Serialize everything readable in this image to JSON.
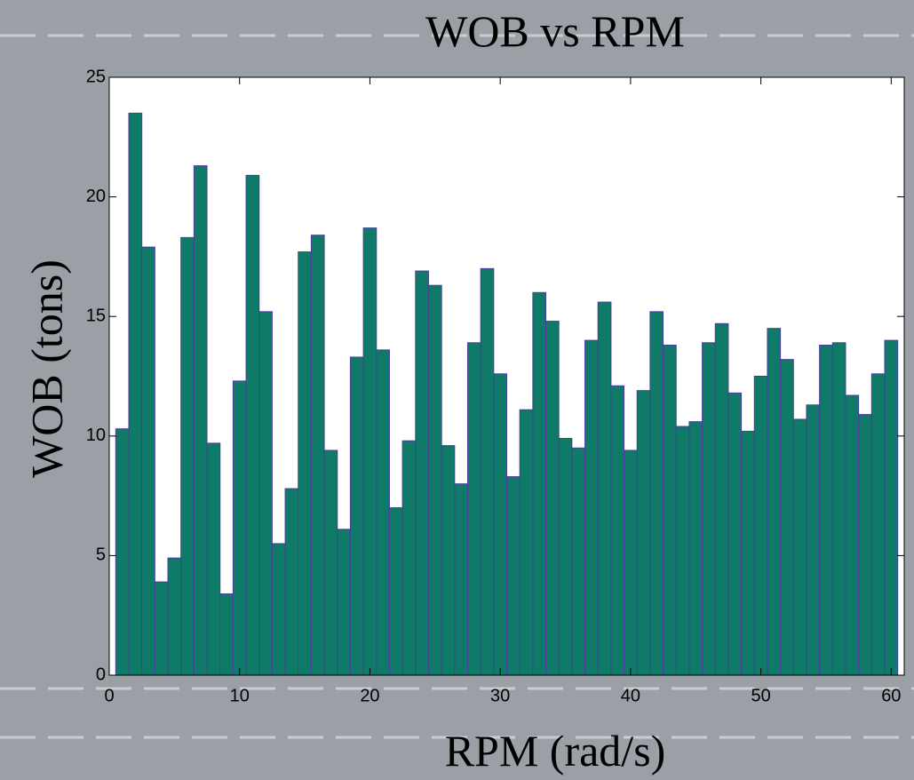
{
  "chart_data": {
    "type": "bar",
    "title": "WOB vs RPM",
    "x_label": "RPM (rad/s)",
    "y_label": "WOB (tons)",
    "x": [
      1,
      2,
      3,
      4,
      5,
      6,
      7,
      8,
      9,
      10,
      11,
      12,
      13,
      14,
      15,
      16,
      17,
      18,
      19,
      20,
      21,
      22,
      23,
      24,
      25,
      26,
      27,
      28,
      29,
      30,
      31,
      32,
      33,
      34,
      35,
      36,
      37,
      38,
      39,
      40,
      41,
      42,
      43,
      44,
      45,
      46,
      47,
      48,
      49,
      50,
      51,
      52,
      53,
      54,
      55,
      56,
      57,
      58,
      59,
      60
    ],
    "values": [
      10.3,
      23.5,
      17.9,
      3.9,
      4.9,
      18.3,
      21.3,
      9.7,
      3.4,
      12.3,
      20.9,
      15.2,
      5.5,
      7.8,
      17.7,
      18.4,
      9.4,
      6.1,
      13.3,
      18.7,
      13.6,
      7.0,
      9.8,
      16.9,
      16.3,
      9.6,
      8.0,
      13.9,
      17.0,
      12.6,
      8.3,
      11.1,
      16.0,
      14.8,
      9.9,
      9.5,
      14.0,
      15.6,
      12.1,
      9.4,
      11.9,
      15.2,
      13.8,
      10.4,
      10.6,
      13.9,
      14.7,
      11.8,
      10.2,
      12.5,
      14.5,
      13.2,
      10.7,
      11.3,
      13.8,
      13.9,
      11.7,
      10.9,
      12.6,
      14.0
    ],
    "color": "#0f7a68",
    "edge_color": "#4b3d9e",
    "xlim": [
      0,
      61
    ],
    "ylim": [
      0,
      25
    ],
    "xticks": [
      0,
      10,
      20,
      30,
      40,
      50,
      60
    ],
    "yticks": [
      0,
      5,
      10,
      15,
      20,
      25
    ]
  }
}
